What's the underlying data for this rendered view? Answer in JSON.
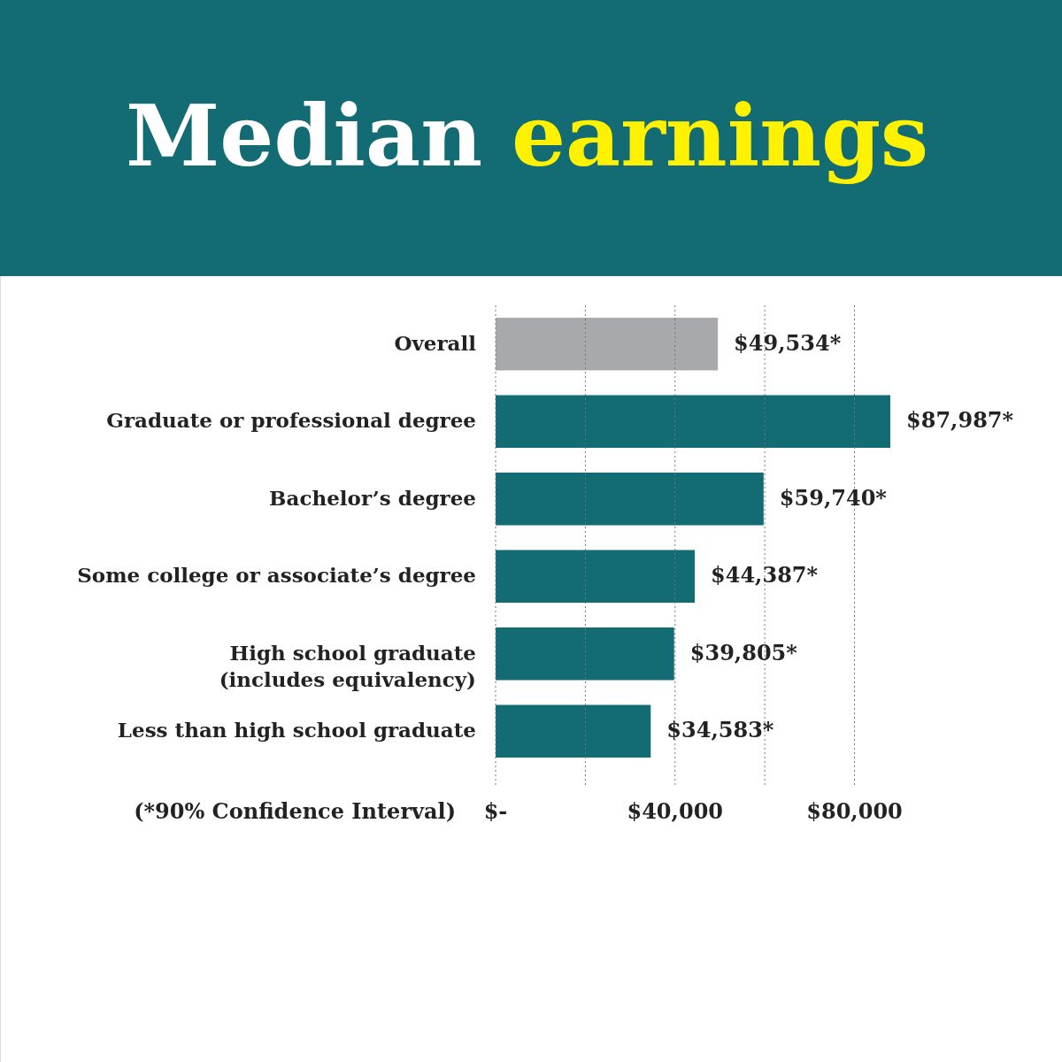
{
  "chart_data": {
    "type": "bar",
    "orientation": "horizontal",
    "title": "Median earnings",
    "categories": [
      "Overall",
      "Graduate or professional degree",
      "Bachelor’s degree",
      "Some college or associate’s degree",
      "High school graduate\n(includes equivalency)",
      "Less than high school graduate"
    ],
    "values": [
      49534,
      87987,
      59740,
      44387,
      39805,
      34583
    ],
    "colors": [
      "#a7a9ac",
      "#136b74",
      "#136b74",
      "#136b74",
      "#136b74",
      "#136b74"
    ],
    "value_labels": [
      "$49,534*",
      "$87,987*",
      "$59,740*",
      "$44,387*",
      "$39,805*",
      "$34,583*"
    ],
    "xticks": [
      {
        "value": 0,
        "label": "$-"
      },
      {
        "value": 20000,
        "label": null
      },
      {
        "value": 40000,
        "label": "$40,000"
      },
      {
        "value": 60000,
        "label": null
      },
      {
        "value": 80000,
        "label": "$80,000"
      }
    ],
    "xlim": [
      0,
      87987
    ],
    "grid": "x",
    "annotations": [
      "(*90% Confidence Interval)"
    ]
  }
}
